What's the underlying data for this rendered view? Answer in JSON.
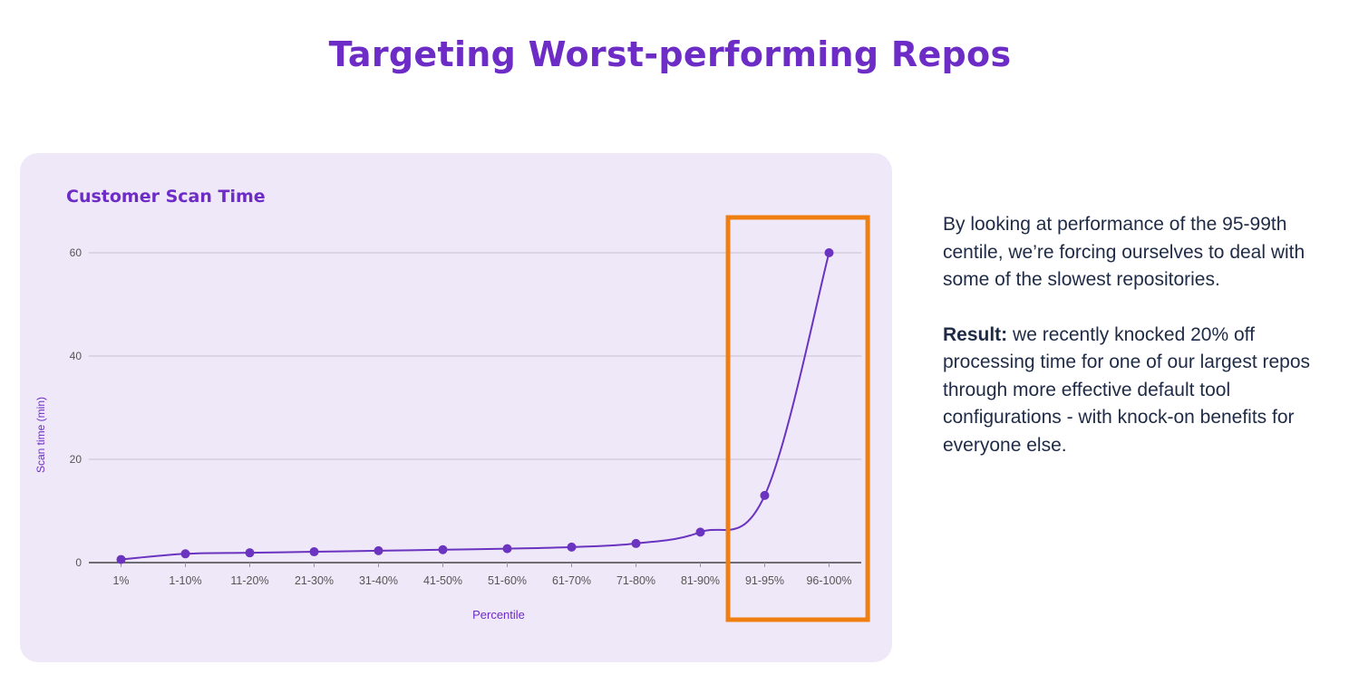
{
  "page": {
    "title": "Targeting Worst-performing Repos",
    "side_text": {
      "paragraph1": "By looking at performance of the 95-99th centile, we’re forcing ourselves to deal with some of the slowest repositories.",
      "result_label": "Result:",
      "result_text": " we recently knocked 20% off processing time for one of our largest repos through more effective default tool configurations - with knock-on benefits for everyone else."
    }
  },
  "colors": {
    "accent": "#6d2cc6",
    "line": "#6a33c0",
    "highlight": "#f07f12",
    "card_bg": "#efe8f8",
    "text": "#1f2b46"
  },
  "chart_data": {
    "type": "line",
    "title": "Customer Scan Time",
    "xlabel": "Percentile",
    "ylabel": "Scan time (min)",
    "categories": [
      "1%",
      "1-10%",
      "11-20%",
      "21-30%",
      "31-40%",
      "41-50%",
      "51-60%",
      "61-70%",
      "71-80%",
      "81-90%",
      "91-95%",
      "96-100%"
    ],
    "values": [
      0.6,
      1.7,
      1.9,
      2.1,
      2.3,
      2.5,
      2.7,
      3.0,
      3.7,
      5.9,
      13.0,
      60.0
    ],
    "ylim": [
      0,
      60
    ],
    "yticks": [
      0,
      20,
      40,
      60
    ],
    "grid": true,
    "highlight_categories": [
      "91-95%",
      "96-100%"
    ]
  }
}
